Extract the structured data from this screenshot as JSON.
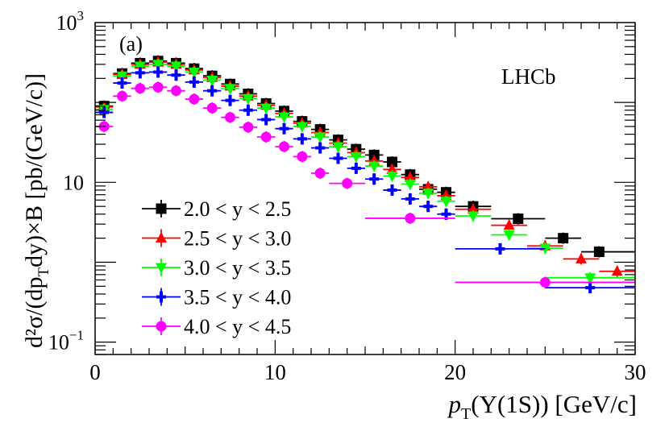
{
  "chart_data": {
    "type": "scatter",
    "yscale": "log",
    "xlim": [
      0,
      30
    ],
    "ylim": [
      0.07,
      1000
    ],
    "x_tick_labels": [
      "0",
      "10",
      "20",
      "30"
    ],
    "y_tick_labels": [
      {
        "base": "10",
        "exp": "3",
        "value": 1000
      },
      {
        "base": "10",
        "exp": "",
        "value": 10
      },
      {
        "base": "10",
        "exp": "−1",
        "value": 0.1
      }
    ],
    "panel_label": "(a)",
    "experiment_label": "LHCb",
    "xlabel": {
      "p": "p",
      "sub": "T",
      "rest": "(Υ(1S)) [GeV/c]"
    },
    "ylabel": {
      "text": "d²σ/(dp",
      "sub": "T",
      "rest": "dy)×B [pb/(GeV/c)]"
    },
    "series": [
      {
        "name": "2.0 < y < 2.5",
        "color": "#000000",
        "marker": "square",
        "points": [
          {
            "x": 0.5,
            "xlo": 0,
            "xhi": 1,
            "y": 90
          },
          {
            "x": 1.5,
            "xlo": 1,
            "xhi": 2,
            "y": 230
          },
          {
            "x": 2.5,
            "xlo": 2,
            "xhi": 3,
            "y": 310
          },
          {
            "x": 3.5,
            "xlo": 3,
            "xhi": 4,
            "y": 330
          },
          {
            "x": 4.5,
            "xlo": 4,
            "xhi": 5,
            "y": 310
          },
          {
            "x": 5.5,
            "xlo": 5,
            "xhi": 6,
            "y": 265
          },
          {
            "x": 6.5,
            "xlo": 6,
            "xhi": 7,
            "y": 215
          },
          {
            "x": 7.5,
            "xlo": 7,
            "xhi": 8,
            "y": 170
          },
          {
            "x": 8.5,
            "xlo": 8,
            "xhi": 9,
            "y": 128
          },
          {
            "x": 9.5,
            "xlo": 9,
            "xhi": 10,
            "y": 97
          },
          {
            "x": 10.5,
            "xlo": 10,
            "xhi": 11,
            "y": 78
          },
          {
            "x": 11.5,
            "xlo": 11,
            "xhi": 12,
            "y": 58
          },
          {
            "x": 12.5,
            "xlo": 12,
            "xhi": 13,
            "y": 46
          },
          {
            "x": 13.5,
            "xlo": 13,
            "xhi": 14,
            "y": 34
          },
          {
            "x": 14.5,
            "xlo": 14,
            "xhi": 15,
            "y": 26
          },
          {
            "x": 15.5,
            "xlo": 15,
            "xhi": 16,
            "y": 22
          },
          {
            "x": 16.5,
            "xlo": 16,
            "xhi": 17,
            "y": 18
          },
          {
            "x": 17.5,
            "xlo": 17,
            "xhi": 18,
            "y": 12.5
          },
          {
            "x": 18.5,
            "xlo": 18,
            "xhi": 19,
            "y": 8.2
          },
          {
            "x": 19.5,
            "xlo": 19,
            "xhi": 20,
            "y": 7.5
          },
          {
            "x": 21.0,
            "xlo": 20,
            "xhi": 22,
            "y": 5.0
          },
          {
            "x": 23.5,
            "xlo": 22,
            "xhi": 25,
            "y": 3.5
          },
          {
            "x": 26.0,
            "xlo": 25,
            "xhi": 27,
            "y": 2.0
          },
          {
            "x": 28.0,
            "xlo": 27,
            "xhi": 30,
            "y": 1.35
          }
        ]
      },
      {
        "name": "2.5 < y < 3.0",
        "color": "#ff0000",
        "marker": "triangle-up",
        "points": [
          {
            "x": 0.5,
            "xlo": 0,
            "xhi": 1,
            "y": 88
          },
          {
            "x": 1.5,
            "xlo": 1,
            "xhi": 2,
            "y": 225
          },
          {
            "x": 2.5,
            "xlo": 2,
            "xhi": 3,
            "y": 300
          },
          {
            "x": 3.5,
            "xlo": 3,
            "xhi": 4,
            "y": 320
          },
          {
            "x": 4.5,
            "xlo": 4,
            "xhi": 5,
            "y": 300
          },
          {
            "x": 5.5,
            "xlo": 5,
            "xhi": 6,
            "y": 255
          },
          {
            "x": 6.5,
            "xlo": 6,
            "xhi": 7,
            "y": 205
          },
          {
            "x": 7.5,
            "xlo": 7,
            "xhi": 8,
            "y": 160
          },
          {
            "x": 8.5,
            "xlo": 8,
            "xhi": 9,
            "y": 120
          },
          {
            "x": 9.5,
            "xlo": 9,
            "xhi": 10,
            "y": 92
          },
          {
            "x": 10.5,
            "xlo": 10,
            "xhi": 11,
            "y": 73
          },
          {
            "x": 11.5,
            "xlo": 11,
            "xhi": 12,
            "y": 55
          },
          {
            "x": 12.5,
            "xlo": 12,
            "xhi": 13,
            "y": 42
          },
          {
            "x": 13.5,
            "xlo": 13,
            "xhi": 14,
            "y": 31
          },
          {
            "x": 14.5,
            "xlo": 14,
            "xhi": 15,
            "y": 23.5
          },
          {
            "x": 15.5,
            "xlo": 15,
            "xhi": 16,
            "y": 18.5
          },
          {
            "x": 16.5,
            "xlo": 16,
            "xhi": 17,
            "y": 14.5
          },
          {
            "x": 17.5,
            "xlo": 17,
            "xhi": 18,
            "y": 11.5
          },
          {
            "x": 18.5,
            "xlo": 18,
            "xhi": 19,
            "y": 8.8
          },
          {
            "x": 19.5,
            "xlo": 19,
            "xhi": 20,
            "y": 6.8
          },
          {
            "x": 21.0,
            "xlo": 20,
            "xhi": 22,
            "y": 4.6
          },
          {
            "x": 23.0,
            "xlo": 22,
            "xhi": 24,
            "y": 2.9
          },
          {
            "x": 25.0,
            "xlo": 24,
            "xhi": 26,
            "y": 1.6
          },
          {
            "x": 27.0,
            "xlo": 26,
            "xhi": 28,
            "y": 1.1
          },
          {
            "x": 29.0,
            "xlo": 28,
            "xhi": 30,
            "y": 0.77
          }
        ]
      },
      {
        "name": "3.0 < y < 3.5",
        "color": "#00ff00",
        "marker": "triangle-down",
        "points": [
          {
            "x": 0.5,
            "xlo": 0,
            "xhi": 1,
            "y": 82
          },
          {
            "x": 1.5,
            "xlo": 1,
            "xhi": 2,
            "y": 215
          },
          {
            "x": 2.5,
            "xlo": 2,
            "xhi": 3,
            "y": 285
          },
          {
            "x": 3.5,
            "xlo": 3,
            "xhi": 4,
            "y": 300
          },
          {
            "x": 4.5,
            "xlo": 4,
            "xhi": 5,
            "y": 285
          },
          {
            "x": 5.5,
            "xlo": 5,
            "xhi": 6,
            "y": 240
          },
          {
            "x": 6.5,
            "xlo": 6,
            "xhi": 7,
            "y": 190
          },
          {
            "x": 7.5,
            "xlo": 7,
            "xhi": 8,
            "y": 150
          },
          {
            "x": 8.5,
            "xlo": 8,
            "xhi": 9,
            "y": 112
          },
          {
            "x": 9.5,
            "xlo": 9,
            "xhi": 10,
            "y": 85
          },
          {
            "x": 10.5,
            "xlo": 10,
            "xhi": 11,
            "y": 66
          },
          {
            "x": 11.5,
            "xlo": 11,
            "xhi": 12,
            "y": 50
          },
          {
            "x": 12.5,
            "xlo": 12,
            "xhi": 13,
            "y": 37
          },
          {
            "x": 13.5,
            "xlo": 13,
            "xhi": 14,
            "y": 28
          },
          {
            "x": 14.5,
            "xlo": 14,
            "xhi": 15,
            "y": 21
          },
          {
            "x": 15.5,
            "xlo": 15,
            "xhi": 16,
            "y": 16
          },
          {
            "x": 16.5,
            "xlo": 16,
            "xhi": 17,
            "y": 12
          },
          {
            "x": 17.5,
            "xlo": 17,
            "xhi": 18,
            "y": 9.5
          },
          {
            "x": 18.5,
            "xlo": 18,
            "xhi": 19,
            "y": 7.3
          },
          {
            "x": 19.5,
            "xlo": 19,
            "xhi": 20,
            "y": 5.8
          },
          {
            "x": 21.0,
            "xlo": 20,
            "xhi": 22,
            "y": 3.8
          },
          {
            "x": 23.0,
            "xlo": 22,
            "xhi": 24,
            "y": 2.2
          },
          {
            "x": 25.0,
            "xlo": 24,
            "xhi": 26,
            "y": 1.5
          },
          {
            "x": 27.5,
            "xlo": 25,
            "xhi": 30,
            "y": 0.64
          }
        ]
      },
      {
        "name": "3.5 < y < 4.0",
        "color": "#0000ff",
        "marker": "cross",
        "points": [
          {
            "x": 0.5,
            "xlo": 0,
            "xhi": 1,
            "y": 75
          },
          {
            "x": 1.5,
            "xlo": 1,
            "xhi": 2,
            "y": 175
          },
          {
            "x": 2.5,
            "xlo": 2,
            "xhi": 3,
            "y": 235
          },
          {
            "x": 3.5,
            "xlo": 3,
            "xhi": 4,
            "y": 240
          },
          {
            "x": 4.5,
            "xlo": 4,
            "xhi": 5,
            "y": 220
          },
          {
            "x": 5.5,
            "xlo": 5,
            "xhi": 6,
            "y": 180
          },
          {
            "x": 6.5,
            "xlo": 6,
            "xhi": 7,
            "y": 140
          },
          {
            "x": 7.5,
            "xlo": 7,
            "xhi": 8,
            "y": 106
          },
          {
            "x": 8.5,
            "xlo": 8,
            "xhi": 9,
            "y": 80
          },
          {
            "x": 9.5,
            "xlo": 9,
            "xhi": 10,
            "y": 61
          },
          {
            "x": 10.5,
            "xlo": 10,
            "xhi": 11,
            "y": 47
          },
          {
            "x": 11.5,
            "xlo": 11,
            "xhi": 12,
            "y": 35
          },
          {
            "x": 12.5,
            "xlo": 12,
            "xhi": 13,
            "y": 27
          },
          {
            "x": 13.5,
            "xlo": 13,
            "xhi": 14,
            "y": 20
          },
          {
            "x": 14.5,
            "xlo": 14,
            "xhi": 15,
            "y": 15
          },
          {
            "x": 15.5,
            "xlo": 15,
            "xhi": 16,
            "y": 11
          },
          {
            "x": 16.5,
            "xlo": 16,
            "xhi": 17,
            "y": 8.0
          },
          {
            "x": 17.5,
            "xlo": 17,
            "xhi": 18,
            "y": 6.2
          },
          {
            "x": 18.5,
            "xlo": 18,
            "xhi": 19,
            "y": 5.0
          },
          {
            "x": 19.5,
            "xlo": 19,
            "xhi": 20,
            "y": 4.0
          },
          {
            "x": 22.5,
            "xlo": 20,
            "xhi": 25,
            "y": 1.47
          },
          {
            "x": 27.5,
            "xlo": 25,
            "xhi": 30,
            "y": 0.48
          }
        ]
      },
      {
        "name": "4.0 < y < 4.5",
        "color": "#ff00ff",
        "marker": "circle",
        "points": [
          {
            "x": 0.5,
            "xlo": 0,
            "xhi": 1,
            "y": 50
          },
          {
            "x": 1.5,
            "xlo": 1,
            "xhi": 2,
            "y": 120
          },
          {
            "x": 2.5,
            "xlo": 2,
            "xhi": 3,
            "y": 150
          },
          {
            "x": 3.5,
            "xlo": 3,
            "xhi": 4,
            "y": 155
          },
          {
            "x": 4.5,
            "xlo": 4,
            "xhi": 5,
            "y": 140
          },
          {
            "x": 5.5,
            "xlo": 5,
            "xhi": 6,
            "y": 110
          },
          {
            "x": 6.5,
            "xlo": 6,
            "xhi": 7,
            "y": 85
          },
          {
            "x": 7.5,
            "xlo": 7,
            "xhi": 8,
            "y": 65
          },
          {
            "x": 8.5,
            "xlo": 8,
            "xhi": 9,
            "y": 49
          },
          {
            "x": 9.5,
            "xlo": 9,
            "xhi": 10,
            "y": 37
          },
          {
            "x": 10.5,
            "xlo": 10,
            "xhi": 11,
            "y": 28
          },
          {
            "x": 11.5,
            "xlo": 11,
            "xhi": 12,
            "y": 21
          },
          {
            "x": 12.5,
            "xlo": 12,
            "xhi": 13,
            "y": 13
          },
          {
            "x": 14.0,
            "xlo": 13,
            "xhi": 15,
            "y": 9.7
          },
          {
            "x": 17.5,
            "xlo": 15,
            "xhi": 20,
            "y": 3.55
          },
          {
            "x": 25.0,
            "xlo": 20,
            "xhi": 30,
            "y": 0.56
          }
        ]
      }
    ]
  }
}
